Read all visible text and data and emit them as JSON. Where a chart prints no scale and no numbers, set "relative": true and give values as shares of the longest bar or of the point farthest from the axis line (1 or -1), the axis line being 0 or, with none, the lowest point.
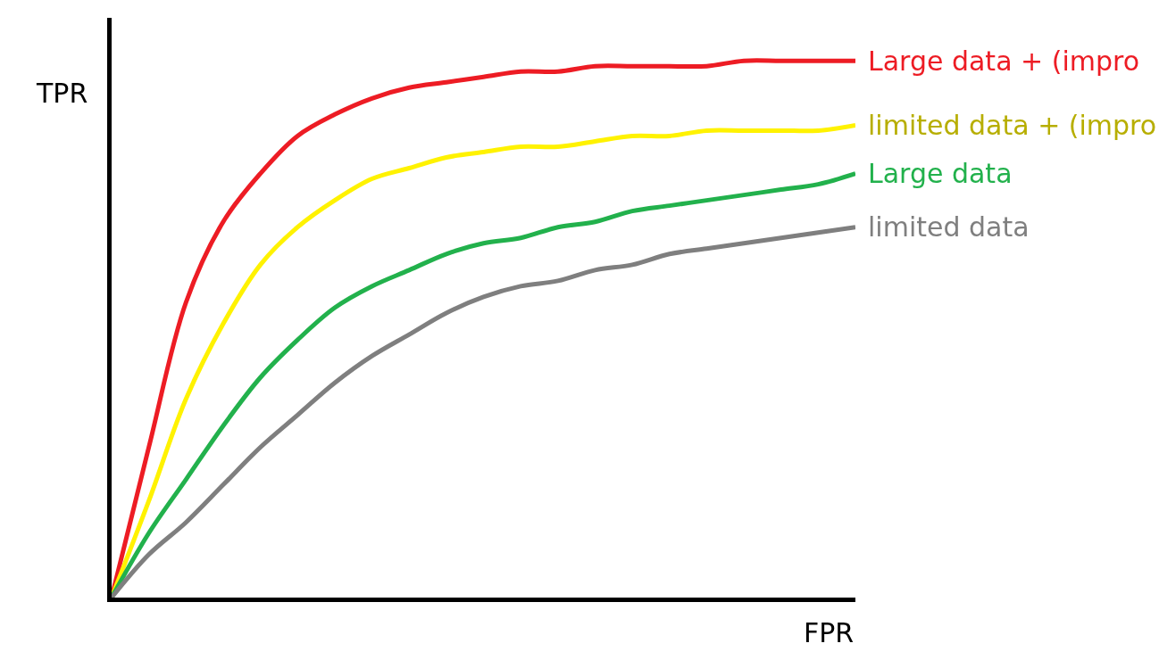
{
  "chart_data": {
    "type": "line",
    "relative": true,
    "xlabel": "FPR",
    "ylabel": "TPR",
    "legend": false,
    "categories": [
      null,
      null,
      null,
      null,
      null,
      null,
      null,
      null,
      null,
      null,
      null,
      null,
      null,
      null,
      null,
      null,
      null,
      null,
      null,
      null,
      null
    ],
    "series": [
      {
        "name": "Large data + (impro",
        "color": "#ed1c24",
        "values": [
          0,
          0.28,
          0.55,
          0.7,
          0.79,
          0.86,
          0.9,
          0.93,
          0.95,
          0.96,
          0.97,
          0.98,
          0.98,
          0.99,
          0.99,
          0.99,
          0.99,
          1.0,
          1.0,
          1.0,
          1
        ]
      },
      {
        "name": "limited data + (impro",
        "color": "#fff200",
        "values": [
          0,
          0.18,
          0.37,
          0.51,
          0.62,
          0.69,
          0.74,
          0.78,
          0.8,
          0.82,
          0.83,
          0.84,
          0.84,
          0.85,
          0.86,
          0.86,
          0.87,
          0.87,
          0.87,
          0.87,
          0.88
        ]
      },
      {
        "name": "Large data",
        "color": "#22b14c",
        "values": [
          0,
          0.12,
          0.22,
          0.32,
          0.41,
          0.48,
          0.54,
          0.58,
          0.61,
          0.64,
          0.66,
          0.67,
          0.69,
          0.7,
          0.72,
          0.73,
          0.74,
          0.75,
          0.76,
          0.77,
          0.79
        ]
      },
      {
        "name": "limited data",
        "color": "#7f7f7f",
        "values": [
          0,
          0.08,
          0.14,
          0.21,
          0.28,
          0.34,
          0.4,
          0.45,
          0.49,
          0.53,
          0.56,
          0.58,
          0.59,
          0.61,
          0.62,
          0.64,
          0.65,
          0.66,
          0.67,
          0.68,
          0.69
        ]
      }
    ]
  }
}
